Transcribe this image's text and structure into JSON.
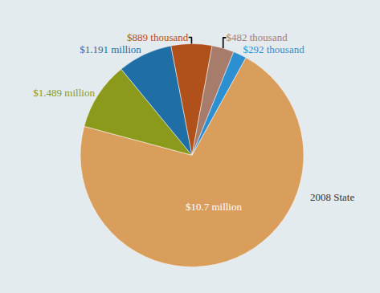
{
  "chart_data": {
    "type": "pie",
    "values": [
      1489000,
      1191000,
      889000,
      482000,
      292000,
      10700000
    ],
    "value_labels": [
      "$1.489 million",
      "$1.191 million",
      "$889 thousand",
      "$482 thousand",
      "$292 thousand",
      "$10.7 million"
    ],
    "colors": [
      "#8c9a1b",
      "#1f6fa6",
      "#b0501a",
      "#a87c6a",
      "#2b8fd1",
      "#d99d5c"
    ],
    "data_labels": true,
    "annotations": [
      "2008 State"
    ]
  }
}
